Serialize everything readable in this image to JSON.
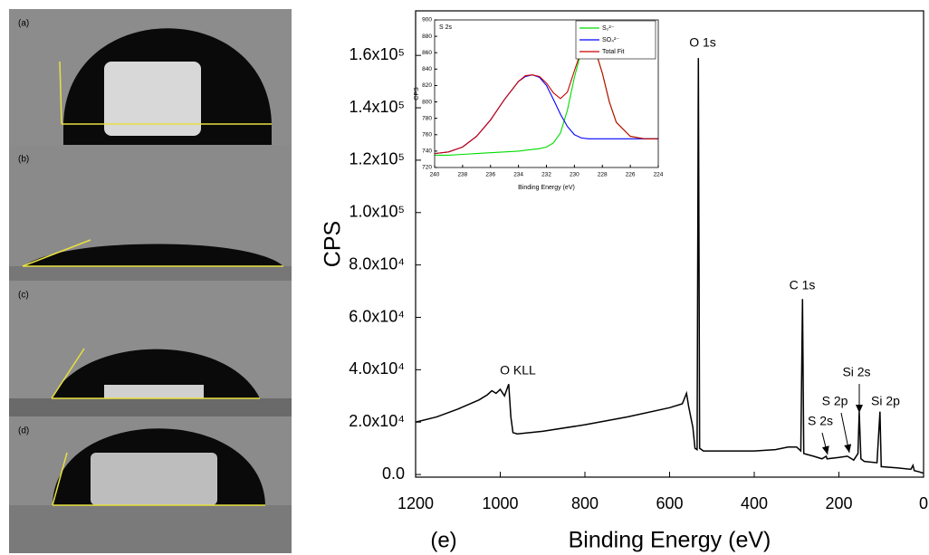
{
  "panels": [
    {
      "label": "(a)"
    },
    {
      "label": "(b)"
    },
    {
      "label": "(c)"
    },
    {
      "label": "(d)"
    }
  ],
  "chart_data": [
    {
      "type": "line",
      "panel_label": "(e)",
      "x_label": "Binding Energy (eV)",
      "y_label": "CPS",
      "color": "#000000",
      "x": [
        1200,
        1150,
        1100,
        1050,
        1030,
        1020,
        1010,
        1000,
        990,
        980,
        975,
        970,
        960,
        900,
        800,
        700,
        600,
        570,
        560,
        555,
        545,
        540,
        535,
        532,
        529,
        520,
        400,
        350,
        320,
        300,
        290,
        286,
        283,
        260,
        240,
        230,
        228,
        200,
        180,
        165,
        155,
        152,
        148,
        140,
        110,
        103,
        100,
        60,
        30,
        25,
        22,
        10,
        0
      ],
      "values": [
        20000,
        22000,
        25000,
        28500,
        30500,
        32000,
        31000,
        32500,
        30000,
        34500,
        22000,
        16000,
        15500,
        16500,
        19000,
        22000,
        25500,
        27000,
        31000,
        26000,
        18000,
        10000,
        9500,
        159000,
        10000,
        9000,
        9000,
        9500,
        10500,
        10500,
        9000,
        67000,
        8000,
        7000,
        6000,
        7000,
        6000,
        6500,
        7000,
        5500,
        8000,
        24000,
        6000,
        5000,
        4500,
        24000,
        3000,
        2500,
        2000,
        3500,
        1500,
        1000,
        500
      ],
      "xlim": [
        1200,
        0
      ],
      "ylim": [
        -1000,
        177000
      ],
      "xticks": [
        1200,
        1000,
        800,
        600,
        400,
        200,
        0
      ],
      "yticks": [
        {
          "value": 0,
          "label": "0.0"
        },
        {
          "value": 20000,
          "label": "2.0x10⁴"
        },
        {
          "value": 40000,
          "label": "4.0x10⁴"
        },
        {
          "value": 60000,
          "label": "6.0x10⁴"
        },
        {
          "value": 80000,
          "label": "8.0x10⁴"
        },
        {
          "value": 100000,
          "label": "1.0x10⁵"
        },
        {
          "value": 120000,
          "label": "1.2x10⁵"
        },
        {
          "value": 140000,
          "label": "1.4x10⁵"
        },
        {
          "value": 160000,
          "label": "1.6x10⁵"
        }
      ],
      "annotations": [
        "O 1s",
        "C 1s",
        "O KLL",
        "S 2s",
        "S 2p",
        "Si 2s",
        "Si 2p"
      ]
    },
    {
      "type": "line",
      "title": "S 2s",
      "x_label": "Binding Energy (eV)",
      "y_label": "CPS",
      "x": [
        240,
        239,
        238,
        237,
        236,
        235,
        234,
        233.5,
        233,
        232.5,
        232,
        231.5,
        231,
        230.5,
        230,
        229.5,
        229,
        228.5,
        228,
        227.5,
        227,
        226,
        225,
        224
      ],
      "series": [
        {
          "name": "S₂²⁻",
          "color": "#00dd00",
          "values": [
            735,
            735,
            736,
            737,
            738,
            739,
            740,
            741,
            742,
            743,
            745,
            750,
            762,
            790,
            830,
            862,
            872,
            862,
            835,
            800,
            775,
            758,
            755,
            755
          ]
        },
        {
          "name": "SO₄²⁻",
          "color": "#0000ff",
          "values": [
            737,
            739,
            745,
            758,
            778,
            803,
            825,
            831,
            833,
            830,
            820,
            803,
            785,
            770,
            760,
            756,
            755,
            755,
            755,
            755,
            755,
            755,
            755,
            755
          ]
        },
        {
          "name": "Total Fit",
          "color": "#cc0000",
          "values": [
            737,
            739,
            745,
            758,
            778,
            803,
            825,
            832,
            833,
            831,
            823,
            811,
            804,
            812,
            838,
            863,
            873,
            863,
            835,
            800,
            775,
            758,
            755,
            755
          ]
        }
      ],
      "xlim": [
        240,
        224
      ],
      "ylim": [
        720,
        900
      ],
      "xticks": [
        240,
        238,
        236,
        234,
        232,
        230,
        228,
        226,
        224
      ],
      "yticks": [
        720,
        740,
        760,
        780,
        800,
        820,
        840,
        860,
        880,
        900
      ]
    }
  ]
}
